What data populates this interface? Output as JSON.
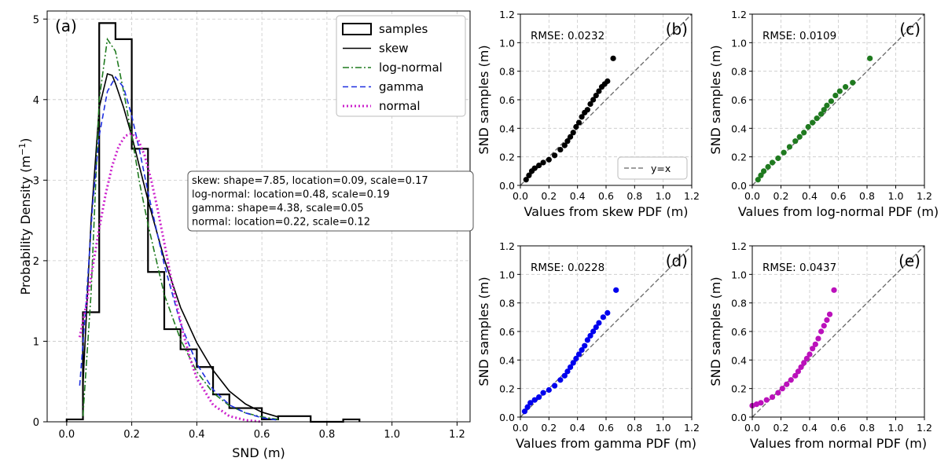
{
  "chart_data": [
    {
      "type": "histogram",
      "panel_label": "(a)",
      "xlabel": "SND (m)",
      "ylabel": "Probability Density (m",
      "ylabel_sup": "−1",
      "ylabel_close": ")",
      "xlim": [
        -0.06,
        1.24
      ],
      "ylim": [
        0,
        5.1
      ],
      "xticks": [
        "0.0",
        "0.2",
        "0.4",
        "0.6",
        "0.8",
        "1.0",
        "1.2"
      ],
      "yticks": [
        "0",
        "1",
        "2",
        "3",
        "4",
        "5"
      ],
      "grid": true,
      "legend_position": "top-right",
      "histogram": {
        "name": "samples",
        "edges": [
          0.0,
          0.05,
          0.1,
          0.15,
          0.2,
          0.25,
          0.3,
          0.35,
          0.4,
          0.45,
          0.5,
          0.55,
          0.6,
          0.65,
          0.7,
          0.75,
          0.8,
          0.85,
          0.9
        ],
        "densities": [
          0.03,
          1.36,
          4.95,
          4.75,
          3.39,
          1.86,
          1.15,
          0.9,
          0.68,
          0.34,
          0.17,
          0.17,
          0.03,
          0.07,
          0.07,
          0.0,
          0.0,
          0.03
        ]
      },
      "series": [
        {
          "name": "skew",
          "color": "#000000",
          "style": "solid",
          "x": [
            0.05,
            0.075,
            0.1,
            0.125,
            0.14,
            0.15,
            0.175,
            0.2,
            0.225,
            0.25,
            0.3,
            0.35,
            0.4,
            0.45,
            0.5,
            0.55,
            0.6,
            0.65
          ],
          "y": [
            0.45,
            2.5,
            3.9,
            4.32,
            4.3,
            4.2,
            3.9,
            3.55,
            3.15,
            2.75,
            2.02,
            1.42,
            0.98,
            0.64,
            0.38,
            0.22,
            0.12,
            0.06
          ]
        },
        {
          "name": "log-normal",
          "color": "#1f7a1f",
          "style": "dashdot",
          "x": [
            0.05,
            0.075,
            0.1,
            0.125,
            0.15,
            0.175,
            0.2,
            0.225,
            0.25,
            0.3,
            0.35,
            0.4,
            0.45,
            0.5,
            0.55,
            0.6,
            0.65
          ],
          "y": [
            0.07,
            1.6,
            4.0,
            4.75,
            4.6,
            4.1,
            3.55,
            2.95,
            2.45,
            1.58,
            1.02,
            0.62,
            0.36,
            0.2,
            0.11,
            0.06,
            0.03
          ]
        },
        {
          "name": "gamma",
          "color": "#1f2fe0",
          "style": "dashed",
          "x": [
            0.04,
            0.06,
            0.08,
            0.1,
            0.125,
            0.15,
            0.175,
            0.2,
            0.225,
            0.25,
            0.3,
            0.35,
            0.4,
            0.45,
            0.5,
            0.55,
            0.6,
            0.65
          ],
          "y": [
            0.45,
            1.5,
            2.7,
            3.55,
            4.1,
            4.28,
            4.15,
            3.8,
            3.35,
            2.85,
            1.95,
            1.22,
            0.72,
            0.4,
            0.21,
            0.11,
            0.05,
            0.02
          ]
        },
        {
          "name": "normal",
          "color": "#cc22cc",
          "style": "dotted",
          "x": [
            0.04,
            0.06,
            0.08,
            0.1,
            0.12,
            0.14,
            0.16,
            0.18,
            0.2,
            0.22,
            0.24,
            0.26,
            0.28,
            0.3,
            0.32,
            0.34,
            0.36,
            0.38,
            0.4,
            0.45,
            0.5,
            0.55,
            0.6
          ],
          "y": [
            1.05,
            1.45,
            1.92,
            2.4,
            2.83,
            3.18,
            3.42,
            3.55,
            3.58,
            3.5,
            3.3,
            3.0,
            2.63,
            2.22,
            1.8,
            1.42,
            1.07,
            0.78,
            0.54,
            0.21,
            0.07,
            0.02,
            0.0
          ]
        }
      ],
      "param_box": [
        "skew: shape=7.85, location=0.09, scale=0.17",
        "log-normal: location=0.48, scale=0.19",
        "gamma: shape=4.38, scale=0.05",
        "normal: location=0.22, scale=0.12"
      ]
    },
    {
      "type": "scatter",
      "panel_label": "(b)",
      "color": "#000000",
      "xlabel": "Values from skew PDF (m)",
      "ylabel": "SND samples (m)",
      "rmse": "RMSE: 0.0232",
      "legend": "y=x",
      "legend_position": "bottom-right",
      "xlim": [
        0,
        1.2
      ],
      "ylim": [
        0,
        1.2
      ],
      "grid": true,
      "x": [
        0.04,
        0.06,
        0.08,
        0.1,
        0.13,
        0.16,
        0.2,
        0.24,
        0.28,
        0.31,
        0.33,
        0.35,
        0.37,
        0.39,
        0.41,
        0.43,
        0.45,
        0.47,
        0.49,
        0.51,
        0.53,
        0.55,
        0.57,
        0.59,
        0.61,
        0.65
      ],
      "y": [
        0.04,
        0.07,
        0.1,
        0.12,
        0.14,
        0.16,
        0.18,
        0.21,
        0.25,
        0.28,
        0.31,
        0.34,
        0.37,
        0.41,
        0.44,
        0.48,
        0.51,
        0.53,
        0.57,
        0.6,
        0.63,
        0.66,
        0.69,
        0.71,
        0.73,
        0.89
      ]
    },
    {
      "type": "scatter",
      "panel_label": "(c)",
      "color": "#1f7a1f",
      "xlabel": "Values from log-normal PDF (m)",
      "ylabel": "SND samples (m)",
      "rmse": "RMSE: 0.0109",
      "xlim": [
        0,
        1.2
      ],
      "ylim": [
        0,
        1.2
      ],
      "grid": true,
      "x": [
        0.04,
        0.06,
        0.08,
        0.11,
        0.14,
        0.18,
        0.22,
        0.26,
        0.3,
        0.33,
        0.36,
        0.39,
        0.42,
        0.45,
        0.48,
        0.5,
        0.52,
        0.55,
        0.58,
        0.61,
        0.65,
        0.7,
        0.82
      ],
      "y": [
        0.04,
        0.07,
        0.1,
        0.13,
        0.16,
        0.19,
        0.23,
        0.27,
        0.31,
        0.34,
        0.37,
        0.41,
        0.44,
        0.47,
        0.5,
        0.53,
        0.56,
        0.59,
        0.63,
        0.66,
        0.69,
        0.72,
        0.89
      ]
    },
    {
      "type": "scatter",
      "panel_label": "(d)",
      "color": "#0000ee",
      "xlabel": "Values from gamma PDF (m)",
      "ylabel": "SND samples (m)",
      "rmse": "RMSE: 0.0228",
      "xlim": [
        0,
        1.2
      ],
      "ylim": [
        0,
        1.2
      ],
      "grid": true,
      "x": [
        0.03,
        0.05,
        0.07,
        0.1,
        0.13,
        0.16,
        0.2,
        0.24,
        0.28,
        0.31,
        0.33,
        0.35,
        0.37,
        0.39,
        0.41,
        0.43,
        0.45,
        0.47,
        0.49,
        0.51,
        0.53,
        0.55,
        0.58,
        0.61,
        0.67
      ],
      "y": [
        0.04,
        0.07,
        0.1,
        0.12,
        0.14,
        0.17,
        0.19,
        0.22,
        0.26,
        0.29,
        0.32,
        0.35,
        0.38,
        0.41,
        0.44,
        0.47,
        0.5,
        0.54,
        0.57,
        0.6,
        0.63,
        0.66,
        0.7,
        0.73,
        0.89
      ]
    },
    {
      "type": "scatter",
      "panel_label": "(e)",
      "color": "#bb11bb",
      "xlabel": "Values from normal PDF (m)",
      "ylabel": "SND samples (m)",
      "rmse": "RMSE: 0.0437",
      "xlim": [
        0,
        1.2
      ],
      "ylim": [
        0,
        1.2
      ],
      "grid": true,
      "x": [
        0.0,
        0.03,
        0.06,
        0.1,
        0.14,
        0.18,
        0.21,
        0.24,
        0.27,
        0.3,
        0.32,
        0.34,
        0.36,
        0.38,
        0.4,
        0.42,
        0.44,
        0.46,
        0.48,
        0.5,
        0.52,
        0.54,
        0.57
      ],
      "y": [
        0.08,
        0.09,
        0.1,
        0.12,
        0.14,
        0.17,
        0.2,
        0.23,
        0.26,
        0.29,
        0.32,
        0.35,
        0.38,
        0.41,
        0.44,
        0.48,
        0.51,
        0.55,
        0.6,
        0.64,
        0.68,
        0.72,
        0.89
      ]
    }
  ]
}
